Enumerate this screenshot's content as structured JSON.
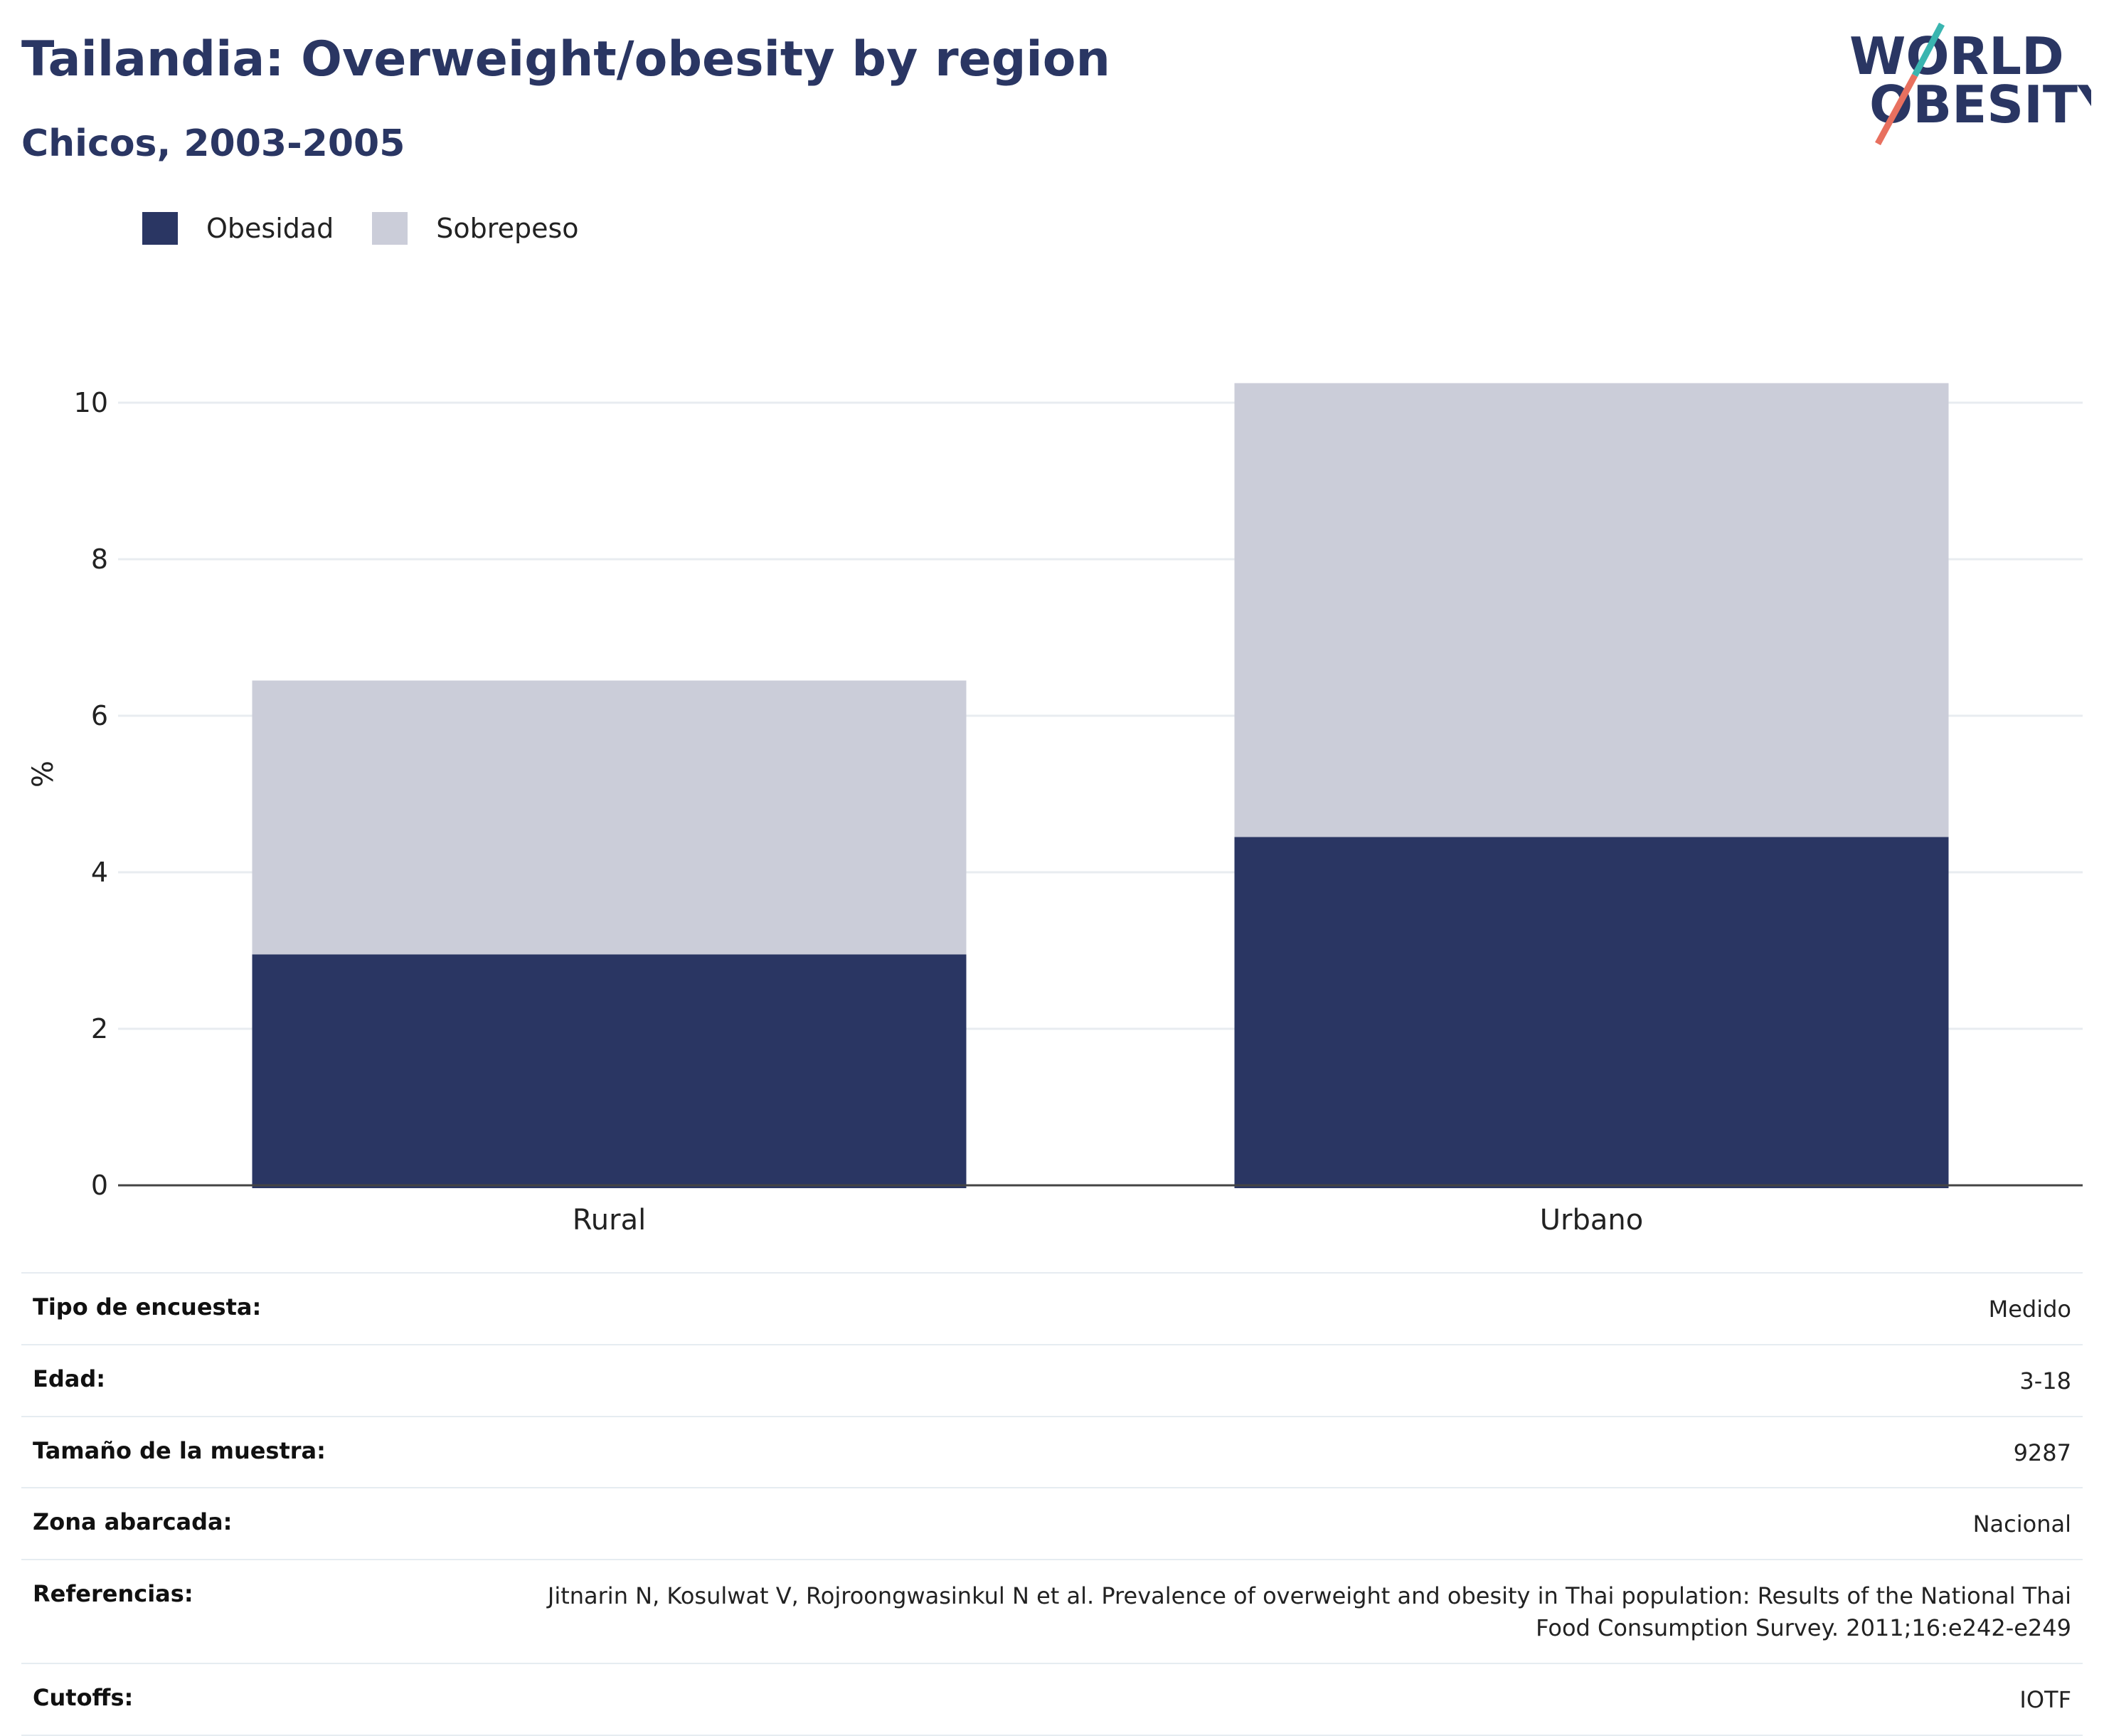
{
  "header": {
    "title": "Tailandia: Overweight/obesity by region",
    "subtitle": "Chicos, 2003-2005"
  },
  "logo": {
    "line1": "WORLD",
    "line2": "OBESITY"
  },
  "colors": {
    "obesidad": "#2a3663",
    "sobrepeso": "#cbcdd9",
    "accent_teal": "#3ab5b0",
    "accent_coral": "#e8705f",
    "text": "#2a3663"
  },
  "chart_data": {
    "type": "bar",
    "stacked": true,
    "categories": [
      "Rural",
      "Urbano"
    ],
    "series": [
      {
        "name": "Obesidad",
        "values": [
          2.95,
          4.45
        ]
      },
      {
        "name": "Sobrepeso",
        "values": [
          3.5,
          5.8
        ]
      }
    ],
    "ylabel": "%",
    "ylim": [
      0,
      10.6
    ],
    "yticks": [
      0,
      2,
      4,
      6,
      8,
      10
    ],
    "grid": true,
    "legend": "top-left"
  },
  "metadata": [
    {
      "label": "Tipo de encuesta:",
      "value": "Medido"
    },
    {
      "label": "Edad:",
      "value": "3-18"
    },
    {
      "label": "Tamaño de la muestra:",
      "value": "9287"
    },
    {
      "label": "Zona abarcada:",
      "value": "Nacional"
    },
    {
      "label": "Referencias:",
      "value": "Jitnarin N, Kosulwat V, Rojroongwasinkul N et al. Prevalence of overweight and obesity in Thai population: Results of the National Thai Food Consumption Survey. 2011;16:e242-e249"
    },
    {
      "label": "Cutoffs:",
      "value": "IOTF"
    }
  ]
}
